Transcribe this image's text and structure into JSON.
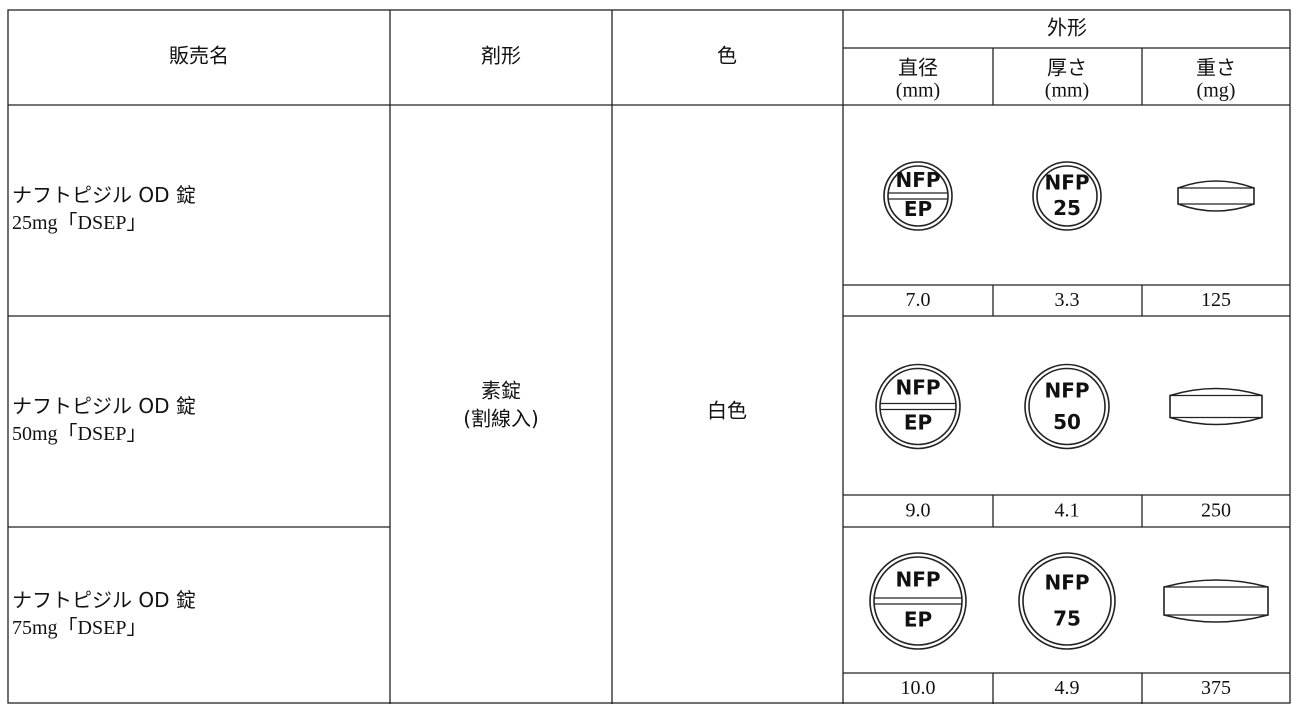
{
  "table": {
    "headers": {
      "name": "販売名",
      "form": "剤形",
      "color": "色",
      "outline": "外形",
      "diameter": [
        "直径",
        "(mm)"
      ],
      "thickness": [
        "厚さ",
        "(mm)"
      ],
      "weight": [
        "重さ",
        "(mg)"
      ]
    },
    "form": [
      "素錠",
      "(割線入)"
    ],
    "color": "白色",
    "rows": [
      {
        "name": [
          "ナフトピジル OD 錠",
          "25mg「DSEP」"
        ],
        "front": [
          "NFP",
          "EP"
        ],
        "back": [
          "NFP",
          "25"
        ],
        "diameter": "7.0",
        "thickness": "3.3",
        "weight": "125"
      },
      {
        "name": [
          "ナフトピジル OD 錠",
          "50mg「DSEP」"
        ],
        "front": [
          "NFP",
          "EP"
        ],
        "back": [
          "NFP",
          "50"
        ],
        "diameter": "9.0",
        "thickness": "4.1",
        "weight": "250"
      },
      {
        "name": [
          "ナフトピジル OD 錠",
          "75mg「DSEP」"
        ],
        "front": [
          "NFP",
          "EP"
        ],
        "back": [
          "NFP",
          "75"
        ],
        "diameter": "10.0",
        "thickness": "4.9",
        "weight": "375"
      }
    ]
  }
}
